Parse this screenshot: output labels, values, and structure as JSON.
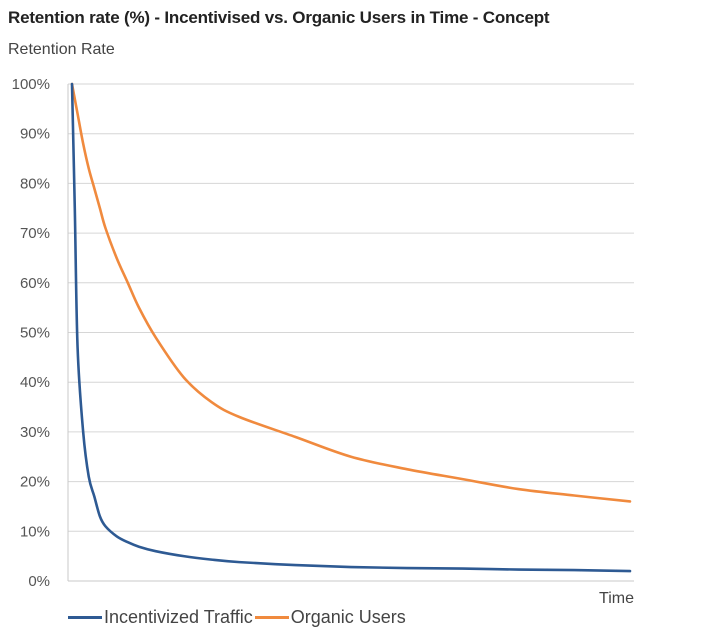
{
  "chart_data": {
    "type": "line",
    "title": "Retention rate (%) - Incentivised vs. Organic Users in Time - Concept",
    "ylabel": "Retention Rate",
    "xlabel": "Time",
    "ylim": [
      0,
      100
    ],
    "yticks": [
      "0%",
      "10%",
      "20%",
      "30%",
      "40%",
      "50%",
      "60%",
      "70%",
      "80%",
      "90%",
      "100%"
    ],
    "grid": true,
    "legend_position": "bottom",
    "x": [
      0,
      0.5,
      1,
      2,
      3,
      4,
      5,
      6,
      8,
      10,
      12,
      15,
      20,
      25,
      30,
      40,
      50,
      60,
      70,
      80,
      90,
      100
    ],
    "series": [
      {
        "name": "Incentivized Traffic",
        "color": "#2e5a93",
        "values": [
          100,
          75,
          47,
          30,
          21,
          17,
          13,
          11,
          9,
          7.8,
          6.9,
          6.0,
          5.0,
          4.3,
          3.8,
          3.2,
          2.8,
          2.6,
          2.5,
          2.3,
          2.2,
          2.0
        ]
      },
      {
        "name": "Organic Users",
        "color": "#f08a3e",
        "values": [
          100,
          97,
          94,
          88,
          83,
          79,
          75,
          71,
          65,
          60,
          55,
          49,
          41,
          36,
          33,
          29,
          25,
          22.5,
          20.5,
          18.5,
          17.2,
          16
        ]
      }
    ]
  }
}
